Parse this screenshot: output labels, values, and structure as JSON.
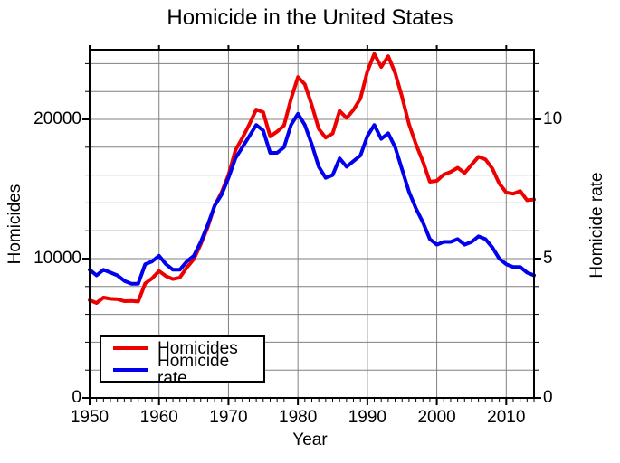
{
  "title": "Homicide in the United States",
  "chart_data": {
    "type": "line",
    "title": "Homicide in the United States",
    "xlabel": "Year",
    "ylabel_left": "Homicides",
    "ylabel_right": "Homicide rate",
    "x_range": [
      1950,
      2014
    ],
    "y_left_range": [
      0,
      25000
    ],
    "y_right_range": [
      0,
      12.5
    ],
    "x_major_ticks": [
      1950,
      1960,
      1970,
      1980,
      1990,
      2000,
      2010
    ],
    "y_left_ticks": [
      0,
      10000,
      20000
    ],
    "y_right_ticks": [
      0,
      5,
      10
    ],
    "grid": {
      "h_interval_left": 2000,
      "v_interval_years": 10,
      "color": "#808080"
    },
    "frame_color": "#000000",
    "legend": {
      "position": "bottom-left",
      "entries": [
        {
          "label": "Homicides",
          "color": "#ee0000"
        },
        {
          "label": "Homicide rate",
          "color": "#0000ee"
        }
      ]
    },
    "years": [
      1950,
      1951,
      1952,
      1953,
      1954,
      1955,
      1956,
      1957,
      1958,
      1959,
      1960,
      1961,
      1962,
      1963,
      1964,
      1965,
      1966,
      1967,
      1968,
      1969,
      1970,
      1971,
      1972,
      1973,
      1974,
      1975,
      1976,
      1977,
      1978,
      1979,
      1980,
      1981,
      1982,
      1983,
      1984,
      1985,
      1986,
      1987,
      1988,
      1989,
      1990,
      1991,
      1992,
      1993,
      1994,
      1995,
      1996,
      1997,
      1998,
      1999,
      2000,
      2001,
      2002,
      2003,
      2004,
      2005,
      2006,
      2007,
      2008,
      2009,
      2010,
      2011,
      2012,
      2013,
      2014
    ],
    "series": [
      {
        "name": "Homicides",
        "axis": "left",
        "color": "#ee0000",
        "values": [
          7020,
          6820,
          7210,
          7120,
          7090,
          6950,
          6970,
          6920,
          8220,
          8580,
          9110,
          8740,
          8530,
          8640,
          9360,
          9960,
          11040,
          12240,
          13800,
          14760,
          16000,
          17780,
          18670,
          19640,
          20710,
          20510,
          18780,
          19120,
          19560,
          21460,
          23040,
          22520,
          21010,
          19310,
          18690,
          18980,
          20610,
          20100,
          20680,
          21500,
          23440,
          24700,
          23760,
          24530,
          23330,
          21610,
          19650,
          18210,
          16970,
          15520,
          15586,
          16037,
          16229,
          16528,
          16148,
          16740,
          17309,
          17128,
          16465,
          15399,
          14748,
          14661,
          14856,
          14196,
          14249
        ]
      },
      {
        "name": "Homicide rate",
        "axis": "right",
        "color": "#0000ee",
        "values": [
          4.6,
          4.4,
          4.6,
          4.5,
          4.4,
          4.2,
          4.1,
          4.1,
          4.8,
          4.9,
          5.1,
          4.8,
          4.6,
          4.6,
          4.9,
          5.1,
          5.6,
          6.2,
          6.9,
          7.3,
          7.9,
          8.6,
          9.0,
          9.4,
          9.8,
          9.6,
          8.8,
          8.8,
          9.0,
          9.8,
          10.2,
          9.8,
          9.1,
          8.3,
          7.9,
          8.0,
          8.6,
          8.3,
          8.5,
          8.7,
          9.4,
          9.8,
          9.3,
          9.5,
          9.0,
          8.2,
          7.4,
          6.8,
          6.3,
          5.7,
          5.5,
          5.6,
          5.6,
          5.7,
          5.5,
          5.6,
          5.8,
          5.7,
          5.4,
          5.0,
          4.8,
          4.7,
          4.7,
          4.5,
          4.4
        ]
      }
    ]
  }
}
